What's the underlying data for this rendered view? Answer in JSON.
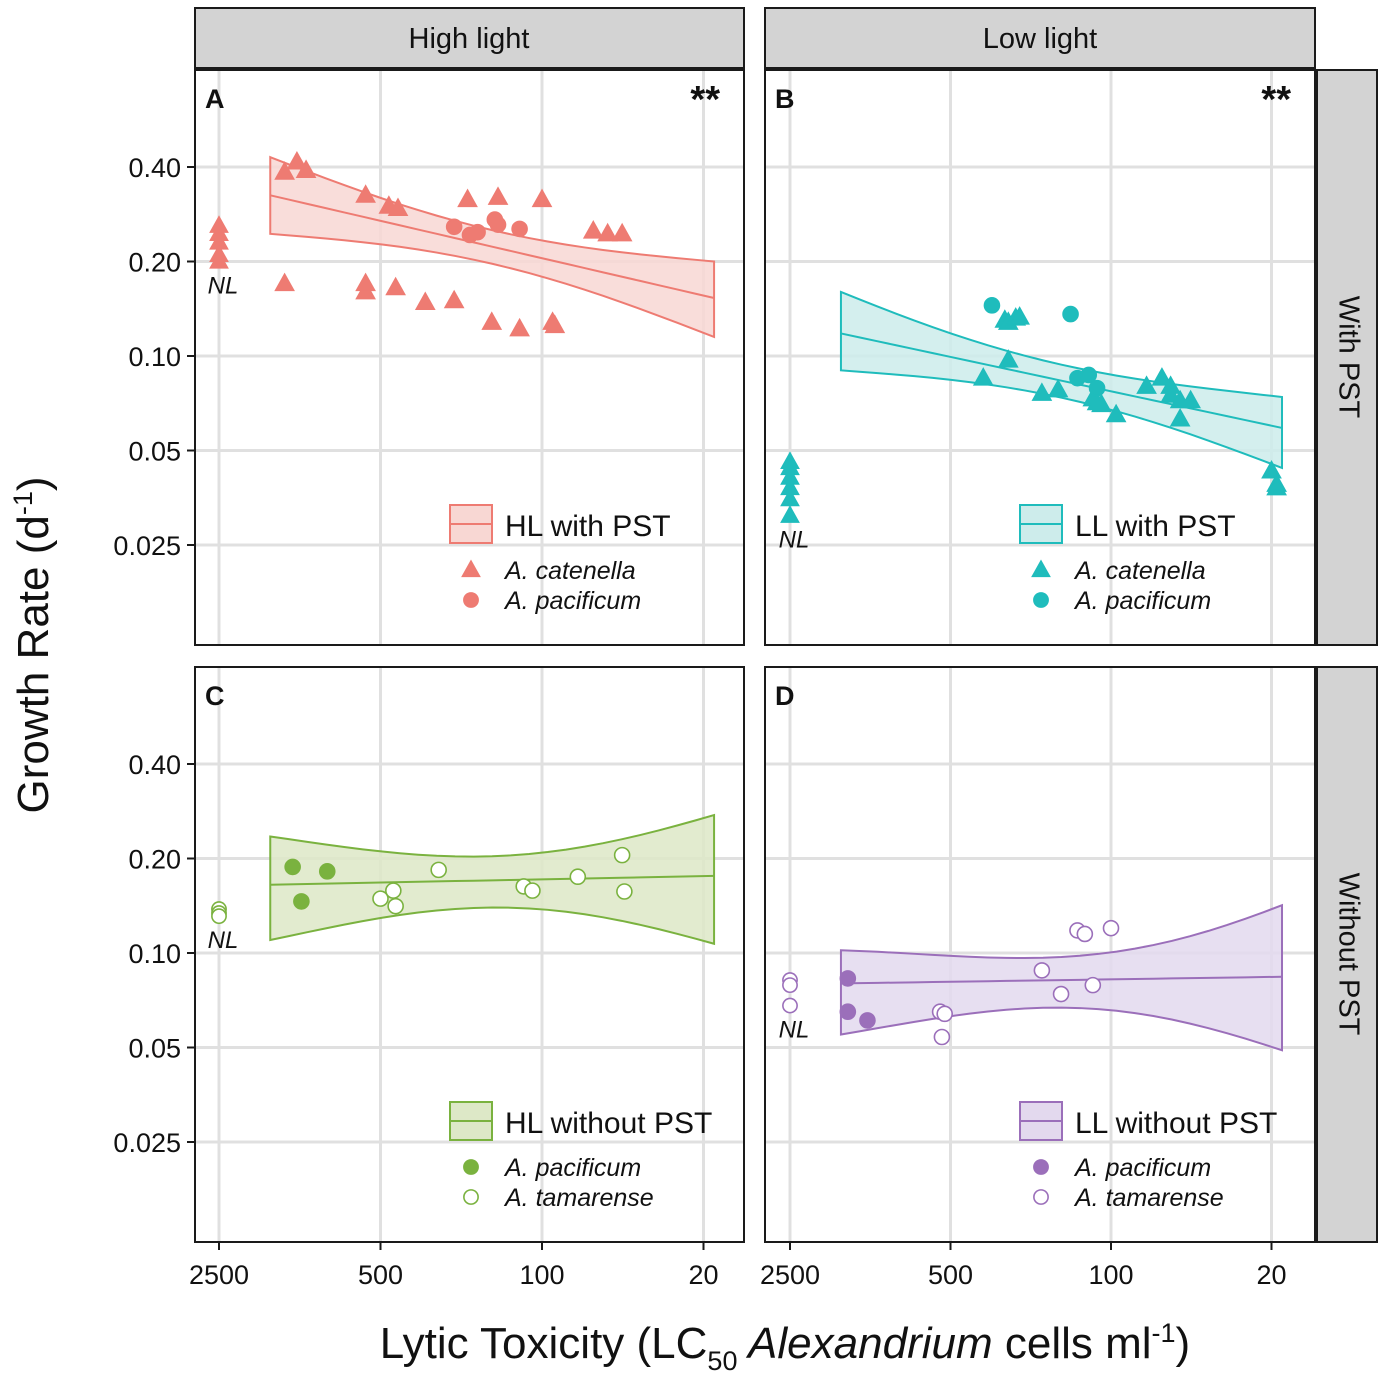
{
  "figure": {
    "ylabel_main": "Growth Rate (d",
    "ylabel_sup": "-1",
    "ylabel_close": ")",
    "xlabel_pre": "Lytic Toxicity (LC",
    "xlabel_sub": "50",
    "xlabel_italic": " Alexandrium",
    "xlabel_post": " cells ml",
    "xlabel_sup": "-1",
    "xlabel_close": ")",
    "column_strips": [
      "High light",
      "Low light"
    ],
    "row_strips": [
      "With PST",
      "Without PST"
    ],
    "x_ticks": [
      2500,
      500,
      100,
      20
    ],
    "x_tick_labels": [
      "2500",
      "500",
      "100",
      "20"
    ],
    "y_ticks": [
      0.025,
      0.05,
      0.1,
      0.2,
      0.4
    ],
    "y_tick_labels": [
      "0.025",
      "0.05",
      "0.10",
      "0.20",
      "0.40"
    ],
    "nl_label": "NL"
  },
  "chart_data": [
    {
      "panel": "A",
      "type": "scatter",
      "title": "High light / With PST",
      "significance": "**",
      "color": "#ee7b72",
      "fill": "#f8d7d3",
      "xscale": "log reversed",
      "yscale": "log2",
      "xlim": [
        4000,
        15
      ],
      "ylim": [
        0.0125,
        0.8
      ],
      "legend": {
        "title": "HL with PST",
        "entries": [
          {
            "label": "A. catenella",
            "marker": "triangle"
          },
          {
            "label": "A. pacificum",
            "marker": "circle"
          }
        ]
      },
      "fit": {
        "x": [
          1500,
          18
        ],
        "center": [
          0.325,
          0.153
        ],
        "upper": [
          0.43,
          0.2
        ],
        "lower": [
          0.245,
          0.115
        ]
      },
      "nl_points": [
        {
          "marker": "triangle",
          "y": [
            0.26,
            0.245,
            0.23,
            0.21,
            0.2
          ]
        }
      ],
      "series": [
        {
          "name": "A. catenella",
          "marker": "triangle",
          "filled": true,
          "x": [
            1300,
            1150,
            1050,
            580,
            460,
            420,
            210,
            155,
            100,
            1300,
            580,
            580,
            430,
            320,
            240,
            165,
            125,
            90,
            88,
            60,
            52,
            45
          ],
          "y": [
            0.385,
            0.415,
            0.39,
            0.325,
            0.3,
            0.295,
            0.315,
            0.32,
            0.315,
            0.17,
            0.16,
            0.17,
            0.165,
            0.148,
            0.15,
            0.128,
            0.122,
            0.128,
            0.125,
            0.25,
            0.245,
            0.245
          ]
        },
        {
          "name": "A. pacificum",
          "marker": "circle",
          "filled": true,
          "x": [
            240,
            205,
            190,
            160,
            155,
            125
          ],
          "y": [
            0.258,
            0.243,
            0.248,
            0.272,
            0.262,
            0.254
          ]
        }
      ]
    },
    {
      "panel": "B",
      "type": "scatter",
      "title": "Low light / With PST",
      "significance": "**",
      "color": "#1fbcbc",
      "fill": "#cdeceb",
      "xscale": "log reversed",
      "yscale": "log2",
      "xlim": [
        4000,
        15
      ],
      "ylim": [
        0.0125,
        0.8
      ],
      "legend": {
        "title": "LL with PST",
        "entries": [
          {
            "label": "A. catenella",
            "marker": "triangle"
          },
          {
            "label": "A. pacificum",
            "marker": "circle"
          }
        ]
      },
      "fit": {
        "x": [
          1500,
          18
        ],
        "center": [
          0.118,
          0.059
        ],
        "upper": [
          0.16,
          0.074
        ],
        "lower": [
          0.09,
          0.044
        ]
      },
      "nl_points": [
        {
          "marker": "triangle",
          "y": [
            0.046,
            0.044,
            0.041,
            0.038,
            0.035,
            0.031
          ]
        }
      ],
      "series": [
        {
          "name": "A. catenella",
          "marker": "triangle",
          "filled": true,
          "x": [
            360,
            290,
            280,
            260,
            250,
            280,
            200,
            170,
            120,
            115,
            110,
            95,
            70,
            60,
            55,
            55,
            50,
            50,
            45,
            20,
            19,
            19
          ],
          "y": [
            0.085,
            0.13,
            0.128,
            0.132,
            0.133,
            0.097,
            0.076,
            0.078,
            0.073,
            0.071,
            0.07,
            0.065,
            0.08,
            0.085,
            0.08,
            0.075,
            0.072,
            0.063,
            0.072,
            0.043,
            0.039,
            0.038
          ]
        },
        {
          "name": "A. pacificum",
          "marker": "circle",
          "filled": true,
          "x": [
            330,
            150,
            140,
            125,
            115
          ],
          "y": [
            0.145,
            0.136,
            0.085,
            0.087,
            0.079
          ]
        }
      ]
    },
    {
      "panel": "C",
      "type": "scatter",
      "title": "High light / Without PST",
      "significance": "",
      "color": "#7ab23f",
      "fill": "#dde8c7",
      "xscale": "log reversed",
      "yscale": "log2",
      "xlim": [
        4000,
        15
      ],
      "ylim": [
        0.0125,
        0.8
      ],
      "legend": {
        "title": "HL without PST",
        "entries": [
          {
            "label": "A. pacificum",
            "marker": "circle",
            "filled": true
          },
          {
            "label": "A. tamarense",
            "marker": "circle",
            "filled": false
          }
        ]
      },
      "fit": {
        "x": [
          1500,
          18
        ],
        "center": [
          0.165,
          0.176
        ],
        "upper": [
          0.235,
          0.275
        ],
        "lower": [
          0.11,
          0.107
        ]
      },
      "nl_points": [
        {
          "marker": "circle-open",
          "y": [
            0.138,
            0.134,
            0.131
          ]
        }
      ],
      "series": [
        {
          "name": "A. pacificum",
          "marker": "circle",
          "filled": true,
          "x": [
            1200,
            1100,
            850
          ],
          "y": [
            0.188,
            0.146,
            0.182
          ]
        },
        {
          "name": "A. tamarense",
          "marker": "circle",
          "filled": false,
          "x": [
            500,
            440,
            430,
            280,
            120,
            110,
            70,
            45,
            44
          ],
          "y": [
            0.149,
            0.158,
            0.141,
            0.184,
            0.163,
            0.158,
            0.175,
            0.205,
            0.157
          ]
        }
      ]
    },
    {
      "panel": "D",
      "type": "scatter",
      "title": "Low light / Without PST",
      "significance": "",
      "color": "#9b6fba",
      "fill": "#e3d9ee",
      "xscale": "log reversed",
      "yscale": "log2",
      "xlim": [
        4000,
        15
      ],
      "ylim": [
        0.0125,
        0.8
      ],
      "legend": {
        "title": "LL without PST",
        "entries": [
          {
            "label": "A. pacificum",
            "marker": "circle",
            "filled": true
          },
          {
            "label": "A. tamarense",
            "marker": "circle",
            "filled": false
          }
        ]
      },
      "fit": {
        "x": [
          1500,
          18
        ],
        "center": [
          0.08,
          0.084
        ],
        "upper": [
          0.102,
          0.142
        ],
        "lower": [
          0.055,
          0.049
        ]
      },
      "nl_points": [
        {
          "marker": "circle-open",
          "y": [
            0.082,
            0.079,
            0.068
          ]
        }
      ],
      "series": [
        {
          "name": "A. pacificum",
          "marker": "circle",
          "filled": true,
          "x": [
            1400,
            1400,
            1150
          ],
          "y": [
            0.083,
            0.065,
            0.061
          ]
        },
        {
          "name": "A. tamarense",
          "marker": "circle",
          "filled": false,
          "x": [
            555,
            530,
            545,
            200,
            165,
            140,
            130,
            120,
            100
          ],
          "y": [
            0.065,
            0.064,
            0.054,
            0.088,
            0.074,
            0.118,
            0.115,
            0.079,
            0.12
          ]
        }
      ]
    }
  ]
}
